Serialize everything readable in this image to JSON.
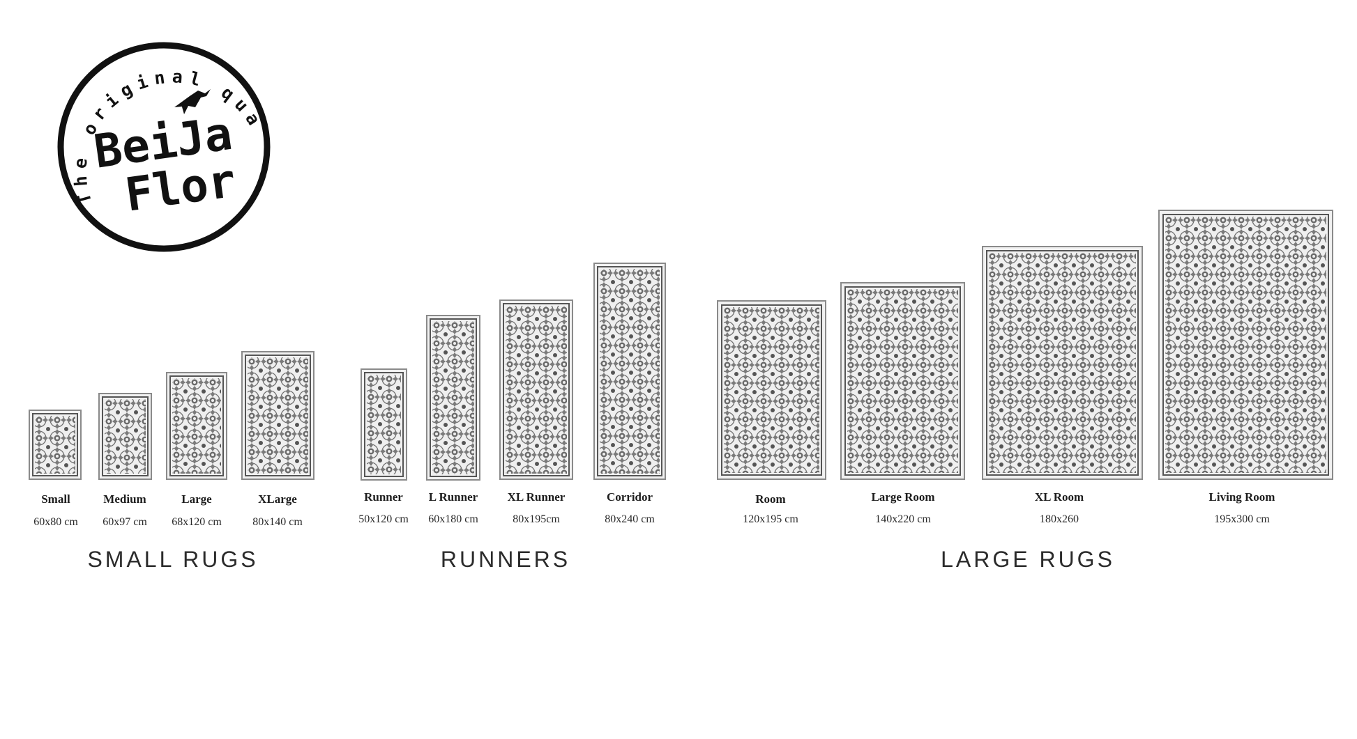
{
  "logo": {
    "arc_text": "The original quality",
    "line1": "BeiJa",
    "line2": "Flor",
    "icon": "hummingbird-icon"
  },
  "groups": [
    {
      "title": "SMALL RUGS",
      "rugs": [
        {
          "name": "Small",
          "size": "60x80 cm"
        },
        {
          "name": "Medium",
          "size": "60x97 cm"
        },
        {
          "name": "Large",
          "size": "68x120 cm"
        },
        {
          "name": "XLarge",
          "size": "80x140 cm"
        }
      ]
    },
    {
      "title": "RUNNERS",
      "rugs": [
        {
          "name": "Runner",
          "size": "50x120 cm"
        },
        {
          "name": "L Runner",
          "size": "60x180 cm"
        },
        {
          "name": "XL Runner",
          "size": "80x195cm"
        },
        {
          "name": "Corridor",
          "size": "80x240 cm"
        }
      ]
    },
    {
      "title": "LARGE RUGS",
      "rugs": [
        {
          "name": "Room",
          "size": "120x195 cm"
        },
        {
          "name": "Large Room",
          "size": "140x220 cm"
        },
        {
          "name": "XL Room",
          "size": "180x260"
        },
        {
          "name": "Living Room",
          "size": "195x300 cm"
        }
      ]
    }
  ]
}
